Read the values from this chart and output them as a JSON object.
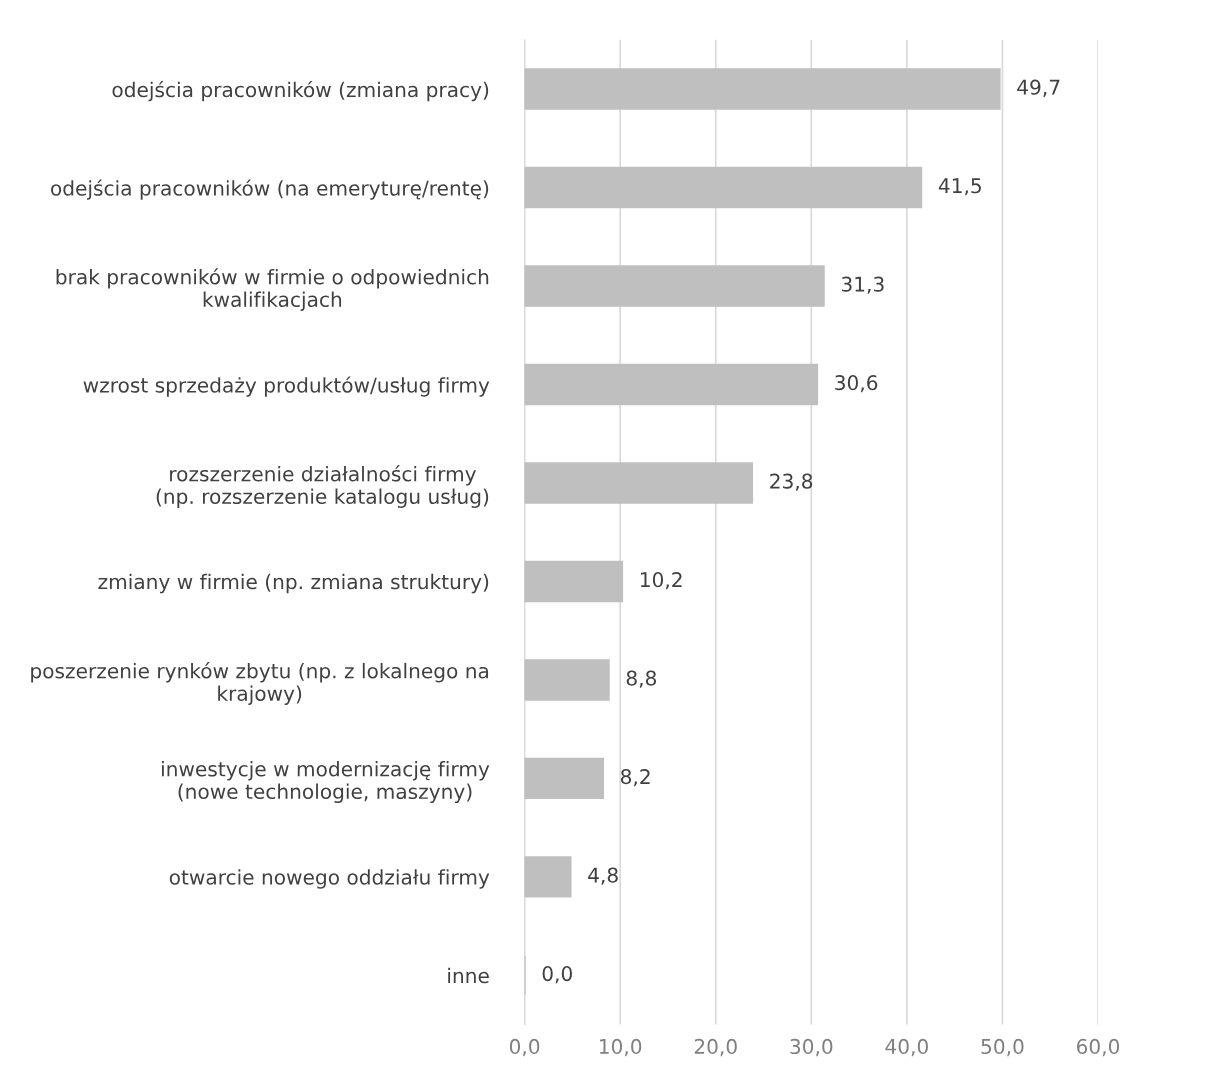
{
  "chart_data": {
    "type": "bar",
    "orientation": "horizontal",
    "categories": [
      "odejścia pracowników (zmiana pracy)",
      "odejścia pracowników (na emeryturę/rentę)",
      "brak pracowników w firmie o odpowiednich\nkwalifikacjach",
      "wzrost sprzedaży produktów/usług firmy",
      "rozszerzenie działalności firmy\n(np. rozszerzenie katalogu usług)",
      "zmiany w firmie (np. zmiana struktury)",
      "poszerzenie rynków zbytu (np. z lokalnego na\nkrajowy)",
      "inwestycje w modernizację firmy\n(nowe technologie, maszyny)",
      "otwarcie nowego oddziału firmy",
      "inne"
    ],
    "values": [
      49.7,
      41.5,
      31.3,
      30.6,
      23.8,
      10.2,
      8.8,
      8.2,
      4.8,
      0.0
    ],
    "value_labels": [
      "49,7",
      "41,5",
      "31,3",
      "30,6",
      "23,8",
      "10,2",
      "8,8",
      "8,2",
      "4,8",
      "0,0"
    ],
    "color": "#bfbfbf",
    "xlim": [
      0,
      60
    ],
    "xticks": [
      {
        "value": 0,
        "label": "0,0"
      },
      {
        "value": 10,
        "label": "10,0"
      },
      {
        "value": 20,
        "label": "20,0"
      },
      {
        "value": 30,
        "label": "30,0"
      },
      {
        "value": 40,
        "label": "40,0"
      },
      {
        "value": 50,
        "label": "50,0"
      },
      {
        "value": 60,
        "label": "60,0"
      }
    ],
    "grid": "x",
    "legend": false
  }
}
